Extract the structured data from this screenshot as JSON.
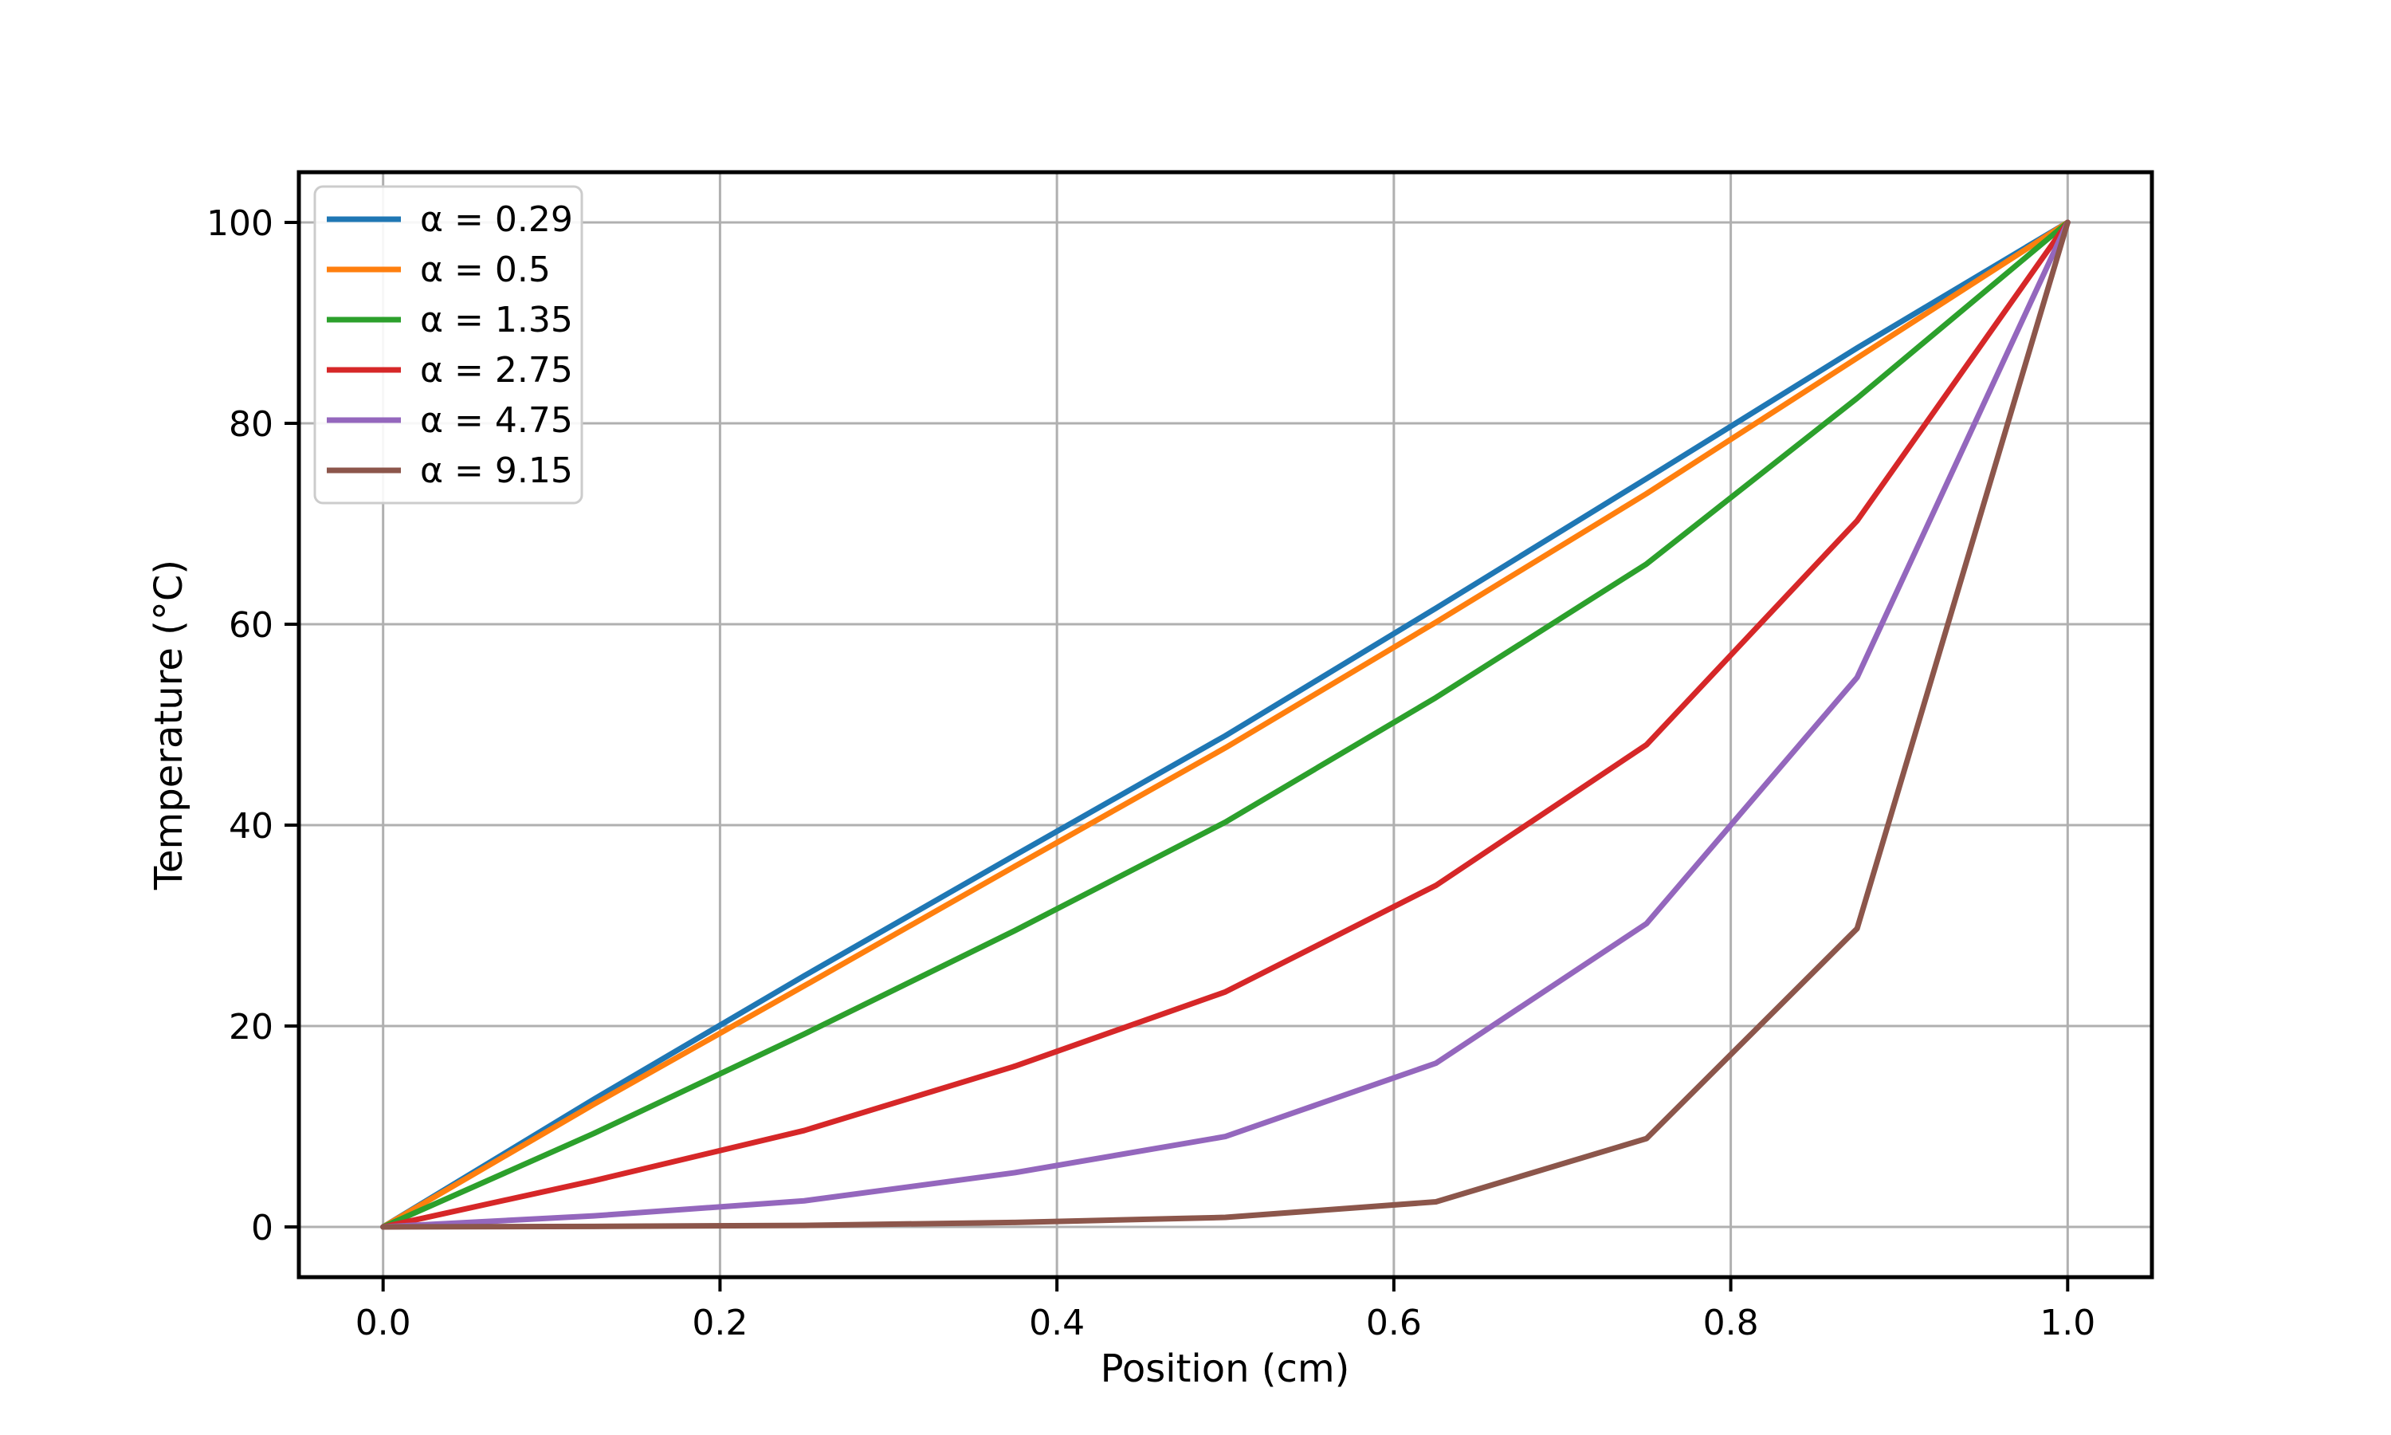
{
  "figure": {
    "background": "#ffffff",
    "spine_color": "#000000",
    "tick_color": "#000000"
  },
  "chart_data": {
    "type": "line",
    "title": "",
    "xlabel": "Position (cm)",
    "ylabel": "Temperature (°C)",
    "xlim": [
      -0.05,
      1.05
    ],
    "ylim": [
      -5,
      105
    ],
    "grid": true,
    "grid_color": "#b0b0b0",
    "legend_position": "upper left",
    "xticks": [
      0.0,
      0.2,
      0.4,
      0.6,
      0.8,
      1.0
    ],
    "xtick_labels": [
      "0.0",
      "0.2",
      "0.4",
      "0.6",
      "0.8",
      "1.0"
    ],
    "yticks": [
      0,
      20,
      40,
      60,
      80,
      100
    ],
    "ytick_labels": [
      "0",
      "20",
      "40",
      "60",
      "80",
      "100"
    ],
    "x": [
      0,
      0.125,
      0.25,
      0.375,
      0.5,
      0.625,
      0.75,
      0.875,
      1.0
    ],
    "series": [
      {
        "label": "α = 0.29",
        "color": "#1f77b4",
        "values": [
          0,
          12.7,
          25.0,
          37.0,
          48.9,
          61.6,
          74.5,
          87.5,
          100
        ]
      },
      {
        "label": "α = 0.5",
        "color": "#ff7f0e",
        "values": [
          0,
          12.2,
          24.0,
          35.9,
          47.7,
          60.2,
          73.0,
          86.5,
          100
        ]
      },
      {
        "label": "α = 1.35",
        "color": "#2ca02c",
        "values": [
          0,
          9.3,
          19.2,
          29.5,
          40.3,
          52.7,
          66.0,
          82.5,
          100
        ]
      },
      {
        "label": "α = 2.75",
        "color": "#d62728",
        "values": [
          0,
          4.6,
          9.6,
          16.0,
          23.4,
          34.0,
          48.0,
          70.3,
          100
        ]
      },
      {
        "label": "α = 4.75",
        "color": "#9467bd",
        "values": [
          0,
          1.1,
          2.6,
          5.4,
          9.0,
          16.3,
          30.2,
          54.7,
          100
        ]
      },
      {
        "label": "α = 9.15",
        "color": "#8c564b",
        "values": [
          0,
          0.05,
          0.15,
          0.45,
          0.95,
          2.5,
          8.8,
          29.7,
          100
        ]
      }
    ]
  }
}
